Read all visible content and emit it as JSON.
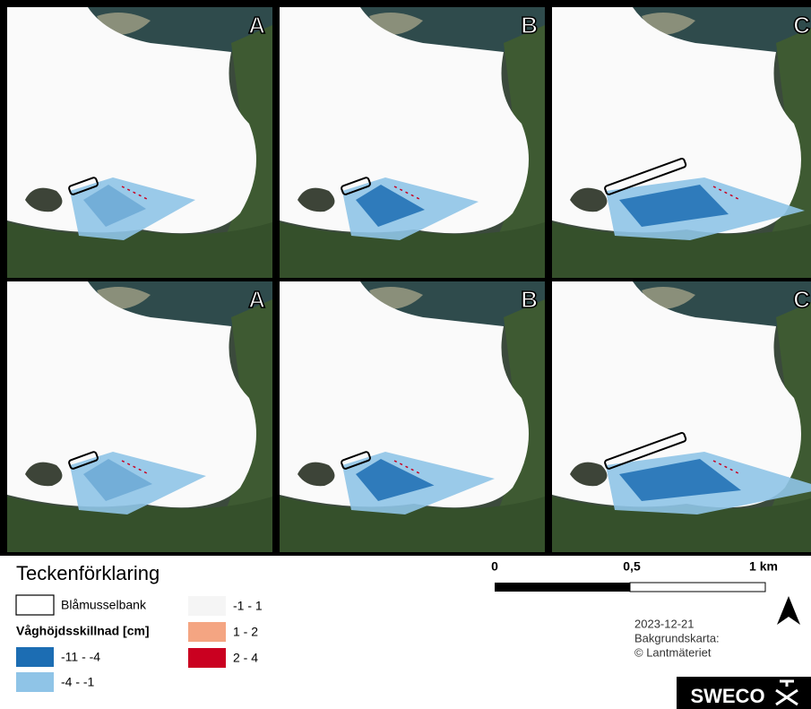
{
  "panels": [
    {
      "label": "A"
    },
    {
      "label": "B"
    },
    {
      "label": "C"
    },
    {
      "label": "A"
    },
    {
      "label": "B"
    },
    {
      "label": "C"
    }
  ],
  "legend": {
    "title": "Teckenförklaring",
    "outline_item": "Blåmusselbank",
    "group_title": "Våghöjdsskillnad [cm]",
    "classes": [
      {
        "label": "-11 - -4",
        "color": "#1c6db3"
      },
      {
        "label": "-4 - -1",
        "color": "#8fc4e7"
      },
      {
        "label": "-1 - 1",
        "color": "#f5f5f5"
      },
      {
        "label": "1 - 2",
        "color": "#f4a582"
      },
      {
        "label": "2 - 4",
        "color": "#ca0020"
      }
    ]
  },
  "scale_bar": {
    "labels": [
      "0",
      "0,5",
      "1 km"
    ]
  },
  "info": {
    "lines": [
      "2023-12-21",
      "Bakgrundskarta:",
      "© Lantmäteriet"
    ]
  },
  "logo": "SWECO"
}
